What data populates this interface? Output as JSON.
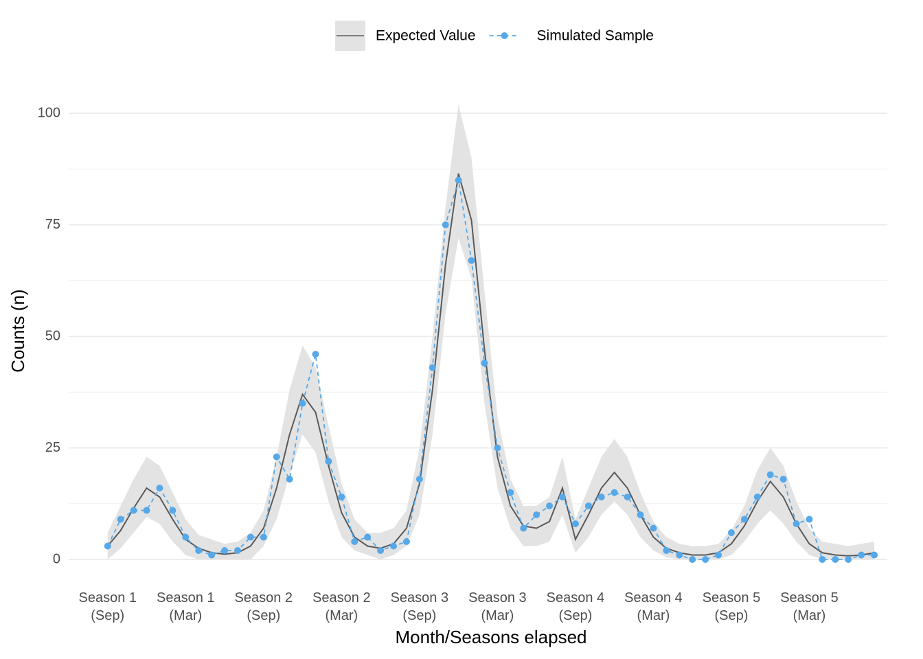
{
  "chart_data": {
    "type": "line",
    "xlabel": "Month/Seasons elapsed",
    "ylabel": "Counts (n)",
    "x": [
      0,
      1,
      2,
      3,
      4,
      5,
      6,
      7,
      8,
      9,
      10,
      11,
      12,
      13,
      14,
      15,
      16,
      17,
      18,
      19,
      20,
      21,
      22,
      23,
      24,
      25,
      26,
      27,
      28,
      29,
      30,
      31,
      32,
      33,
      34,
      35,
      36,
      37,
      38,
      39,
      40,
      41,
      42,
      43,
      44,
      45,
      46,
      47,
      48,
      49,
      50,
      51,
      52,
      53,
      54,
      55,
      56,
      57,
      58,
      59
    ],
    "series": [
      {
        "name": "Expected Value",
        "color": "#595959",
        "band_color": "#e3e3e3",
        "values": [
          3,
          6.5,
          11.5,
          16,
          14,
          9,
          4.5,
          2.5,
          1.5,
          1.2,
          1.5,
          3,
          7,
          16,
          28,
          37,
          33,
          21,
          10.5,
          5,
          3,
          2.5,
          3.5,
          7,
          17,
          38,
          66,
          86.5,
          76,
          47,
          23,
          12,
          7.5,
          7,
          8.5,
          16,
          4.5,
          10,
          16,
          19.5,
          16,
          10,
          5,
          2.5,
          1.5,
          1,
          1,
          1.5,
          3.5,
          7.5,
          13,
          17.5,
          14,
          8,
          3.5,
          1.5,
          1,
          0.8,
          1,
          1.5
        ],
        "lower": [
          0,
          2.5,
          6,
          9.5,
          8,
          4,
          1,
          0,
          0,
          0,
          0,
          0,
          3,
          9,
          19,
          28,
          24,
          13,
          5,
          2,
          1,
          0,
          1,
          3,
          10,
          28,
          55,
          72,
          63,
          35,
          16,
          7,
          3,
          3,
          4,
          10,
          1.5,
          5,
          10,
          13,
          10,
          5,
          2,
          0.5,
          0,
          0,
          0,
          0,
          1,
          4,
          8,
          11,
          8,
          4,
          1,
          0,
          0,
          0,
          0,
          0
        ],
        "upper": [
          6,
          12,
          18,
          23,
          21,
          15,
          9,
          5.5,
          4.5,
          3.5,
          4,
          6,
          11,
          23,
          38,
          48,
          43,
          30,
          17,
          9,
          6,
          6,
          7,
          11,
          25,
          50,
          79,
          102,
          90,
          60,
          32,
          18,
          12,
          12,
          14,
          23,
          9,
          16,
          23,
          27,
          23,
          15,
          8.5,
          5,
          3.5,
          3,
          3,
          3.5,
          6.5,
          12,
          20,
          25,
          21,
          13,
          7,
          4,
          3.5,
          3,
          3.5,
          4
        ]
      },
      {
        "name": "Simulated Sample",
        "color": "#56a8e8",
        "dashed": true,
        "values": [
          3,
          9,
          11,
          11,
          16,
          11,
          5,
          2,
          1,
          2,
          2,
          5,
          5,
          23,
          18,
          35,
          46,
          22,
          14,
          4,
          5,
          2,
          3,
          4,
          18,
          43,
          75,
          85,
          67,
          44,
          25,
          15,
          7,
          10,
          12,
          14,
          8,
          12,
          14,
          15,
          14,
          10,
          7,
          2,
          1,
          0,
          0,
          1,
          6,
          9,
          14,
          19,
          18,
          8,
          9,
          0,
          0,
          0,
          1,
          1
        ]
      }
    ],
    "xlim": [
      -3,
      60
    ],
    "xticks": [
      {
        "value": 0,
        "label": "Season 1\n(Sep)"
      },
      {
        "value": 6,
        "label": "Season 1\n(Mar)"
      },
      {
        "value": 12,
        "label": "Season 2\n(Sep)"
      },
      {
        "value": 18,
        "label": "Season 2\n(Mar)"
      },
      {
        "value": 24,
        "label": "Season 3\n(Sep)"
      },
      {
        "value": 30,
        "label": "Season 3\n(Mar)"
      },
      {
        "value": 36,
        "label": "Season 4\n(Sep)"
      },
      {
        "value": 42,
        "label": "Season 4\n(Mar)"
      },
      {
        "value": 48,
        "label": "Season 5\n(Sep)"
      },
      {
        "value": 54,
        "label": "Season 5\n(Mar)"
      }
    ],
    "ylim": [
      -5,
      105
    ],
    "yticks": [
      0,
      25,
      50,
      75,
      100
    ],
    "yminorticks": [
      12.5,
      37.5,
      62.5,
      87.5
    ],
    "grid": true,
    "legend": "top"
  }
}
